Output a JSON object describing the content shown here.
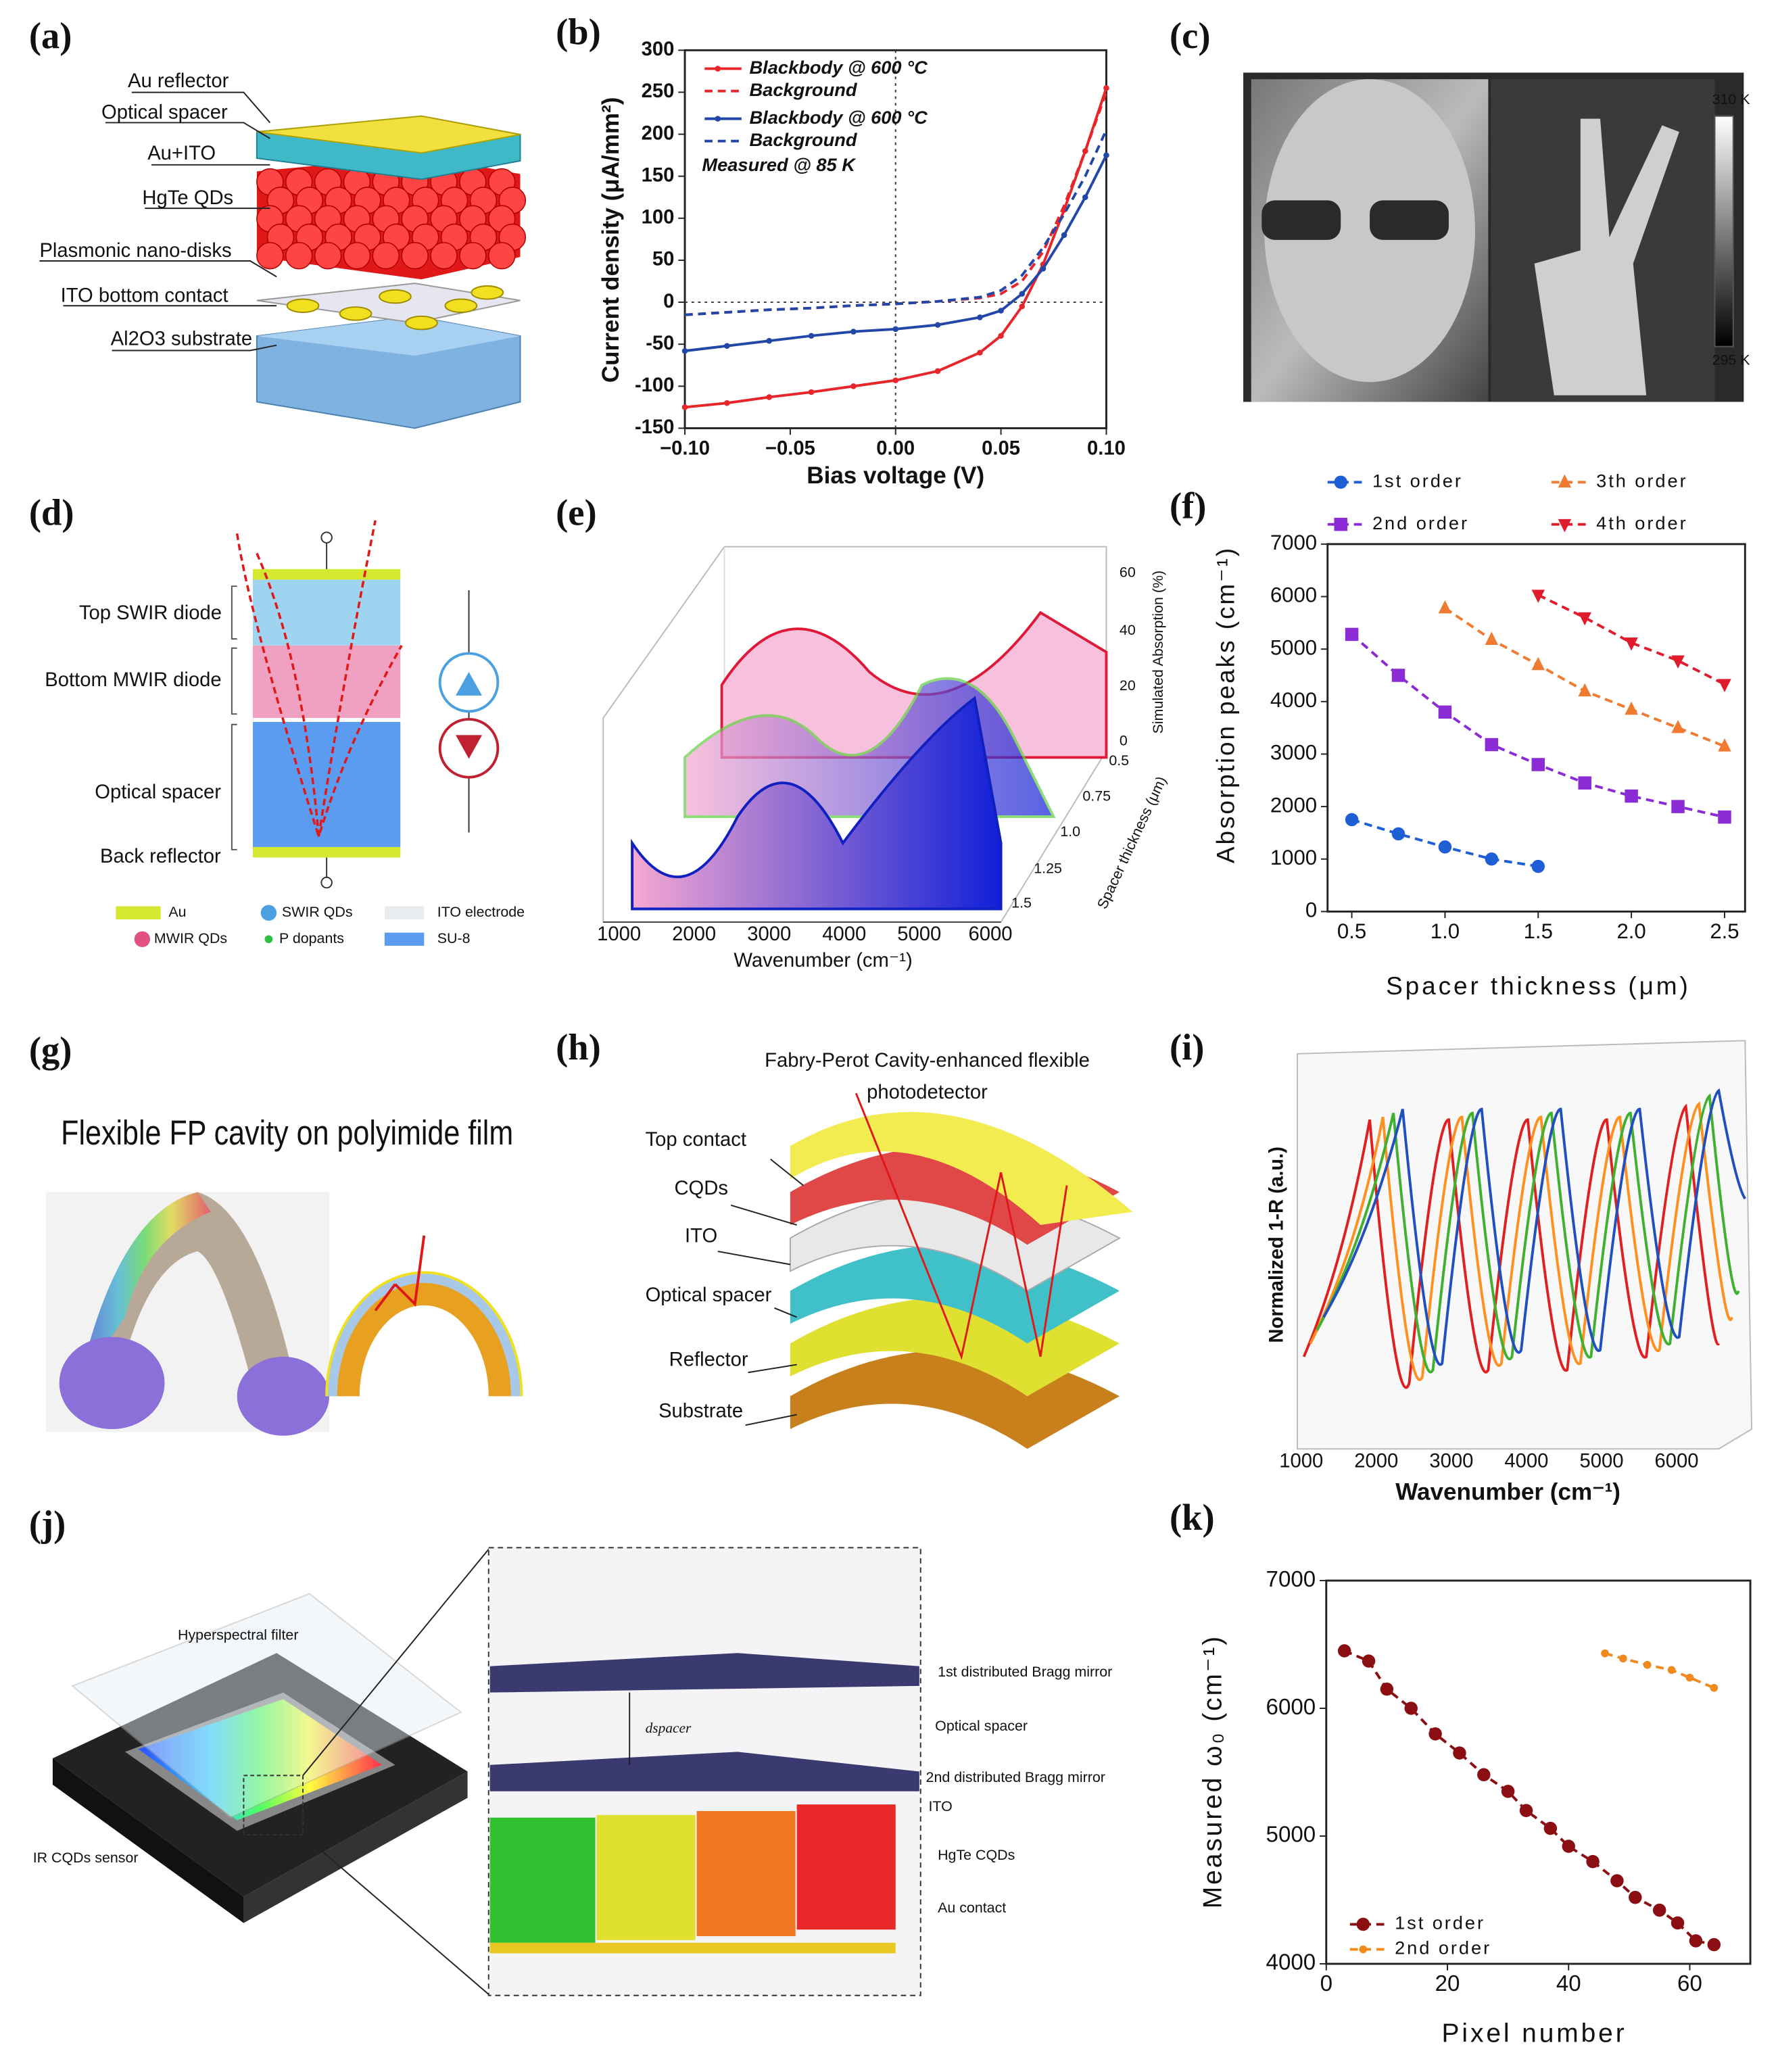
{
  "panels": {
    "a": {
      "label": "(a)",
      "layers": [
        "Au reflector",
        "Optical spacer",
        "Au+ITO",
        "HgTe QDs",
        "Plasmonic nano-disks",
        "ITO bottom contact",
        "Al2O3 substrate"
      ]
    },
    "b": {
      "label": "(b)"
    },
    "c": {
      "label": "(c)",
      "colorbar": [
        "310 K",
        "295 K"
      ]
    },
    "d": {
      "label": "(d)",
      "parts": [
        "Top SWIR diode",
        "Bottom MWIR diode",
        "Optical spacer",
        "Back reflector"
      ],
      "legend": [
        "Au",
        "SWIR QDs",
        "ITO electrode",
        "MWIR QDs",
        "P dopants",
        "SU-8"
      ]
    },
    "e": {
      "label": "(e)",
      "xticks": [
        "1000",
        "2000",
        "3000",
        "4000",
        "5000",
        "6000"
      ],
      "xlabel": "Wavenumber (cm⁻¹)",
      "zticks": [
        "0",
        "20",
        "40",
        "60"
      ],
      "zlabel": "Simulated Absorption (%)",
      "dticks": [
        "0.5",
        "0.75",
        "1.0",
        "1.25",
        "1.5"
      ],
      "dlabel": "Spacer thickness (μm)"
    },
    "f": {
      "label": "(f)"
    },
    "g": {
      "label": "(g)",
      "title": "Flexible FP cavity on polyimide film"
    },
    "h": {
      "label": "(h)",
      "title": [
        "Fabry-Perot Cavity-enhanced flexible",
        "photodetector"
      ],
      "layers": [
        "Top contact",
        "CQDs",
        "ITO",
        "Optical spacer",
        "Reflector",
        "Substrate"
      ]
    },
    "i": {
      "label": "(i)",
      "xticks": [
        "1000",
        "2000",
        "3000",
        "4000",
        "5000",
        "6000"
      ],
      "xlabel": "Wavenumber (cm⁻¹)",
      "ylabel": "Normalized 1-R (a.u.)"
    },
    "j": {
      "label": "(j)",
      "left": [
        "Hyperspectral filter",
        "IR CQDs sensor"
      ],
      "layers": [
        "1st distributed Bragg mirror",
        "Optical spacer",
        "2nd distributed Bragg mirror",
        "ITO",
        "HgTe CQDs",
        "Au contact"
      ],
      "gap": "dspacer"
    },
    "k": {
      "label": "(k)"
    }
  },
  "chart_data": [
    {
      "type": "line",
      "xlabel": "Bias voltage (V)",
      "ylabel": "Current density (μA/mm²)",
      "annotation": "Measured @ 85 K",
      "x": [
        -0.1,
        -0.08,
        -0.06,
        -0.04,
        -0.02,
        0,
        0.02,
        0.04,
        0.05,
        0.06,
        0.07,
        0.08,
        0.09,
        0.1
      ],
      "series": [
        {
          "name": "Blackbody @ 600 °C",
          "color": "#e8262a",
          "style": "solid",
          "marker": "circle",
          "values": [
            -125,
            -120,
            -113,
            -107,
            -100,
            -93,
            -82,
            -60,
            -40,
            -5,
            45,
            110,
            180,
            255
          ]
        },
        {
          "name": "Background",
          "color": "#e8262a",
          "style": "dashed",
          "marker": "none",
          "values": [
            -15,
            -12,
            -9,
            -7,
            -4,
            -2,
            1,
            5,
            10,
            25,
            60,
            115,
            180,
            250
          ]
        },
        {
          "name": "Blackbody @ 600 °C",
          "color": "#2347a8",
          "style": "solid",
          "marker": "circle",
          "values": [
            -58,
            -52,
            -46,
            -40,
            -35,
            -32,
            -27,
            -18,
            -10,
            10,
            40,
            80,
            125,
            175
          ]
        },
        {
          "name": "Background",
          "color": "#2347a8",
          "style": "dashed",
          "marker": "none",
          "values": [
            -15,
            -12,
            -9,
            -7,
            -4,
            -2,
            1,
            6,
            14,
            32,
            65,
            105,
            150,
            205
          ]
        }
      ],
      "xlim": [
        -0.1,
        0.1
      ],
      "xticks": [
        {
          "value": -0.1,
          "label": "−0.10"
        },
        {
          "value": -0.05,
          "label": "−0.05"
        },
        {
          "value": 0,
          "label": "0.00"
        },
        {
          "value": 0.05,
          "label": "0.05"
        },
        {
          "value": 0.1,
          "label": "0.10"
        }
      ],
      "ylim": [
        -150,
        300
      ],
      "yticks": [
        -150,
        -100,
        -50,
        0,
        50,
        100,
        150,
        200,
        250,
        300
      ],
      "zero_lines": true,
      "legend": "upper left"
    },
    {
      "type": "line",
      "xlabel": "Spacer thickness (μm)",
      "ylabel": "Absorption peaks (cm⁻¹)",
      "series": [
        {
          "name": "1st order",
          "color": "#1f5fd6",
          "style": "dashed",
          "marker": "circle",
          "x": [
            0.5,
            0.75,
            1.0,
            1.25,
            1.5
          ],
          "values": [
            1750,
            1480,
            1230,
            1000,
            860
          ]
        },
        {
          "name": "2nd order",
          "color": "#8a2bd6",
          "style": "dashed",
          "marker": "square",
          "x": [
            0.5,
            0.75,
            1.0,
            1.25,
            1.5,
            1.75,
            2.0,
            2.25,
            2.5
          ],
          "values": [
            5280,
            4500,
            3800,
            3180,
            2800,
            2450,
            2200,
            2000,
            1800
          ]
        },
        {
          "name": "3th order",
          "color": "#f07a30",
          "style": "dashed",
          "marker": "triangle-up",
          "x": [
            1.0,
            1.25,
            1.5,
            1.75,
            2.0,
            2.25,
            2.5
          ],
          "values": [
            5780,
            5180,
            4700,
            4200,
            3850,
            3500,
            3150
          ]
        },
        {
          "name": "4th order",
          "color": "#e01c2c",
          "style": "dashed",
          "marker": "triangle-down",
          "x": [
            1.5,
            1.75,
            2.0,
            2.25,
            2.5
          ],
          "values": [
            6030,
            5600,
            5120,
            4780,
            4330
          ]
        }
      ],
      "xlim": [
        0.37,
        2.61
      ],
      "xticks": [
        0.5,
        {
          "value": 1,
          "label": "1.0"
        },
        1.5,
        {
          "value": 2,
          "label": "2.0"
        },
        2.5
      ],
      "ylim": [
        0,
        7000
      ],
      "yticks": [
        0,
        1000,
        2000,
        3000,
        4000,
        5000,
        6000,
        7000
      ],
      "legend": "top"
    },
    {
      "type": "line",
      "xlabel": "Pixel number",
      "ylabel": "Measured ω₀ (cm⁻¹)",
      "series": [
        {
          "name": "1st order",
          "color": "#8b0f12",
          "style": "dashed",
          "marker": "circle",
          "x": [
            3,
            7,
            10,
            14,
            18,
            22,
            26,
            30,
            33,
            37,
            40,
            44,
            48,
            51,
            55,
            58,
            61,
            64
          ],
          "values": [
            6450,
            6370,
            6150,
            6000,
            5800,
            5650,
            5480,
            5350,
            5200,
            5060,
            4920,
            4800,
            4650,
            4520,
            4420,
            4320,
            4180,
            4150
          ]
        },
        {
          "name": "2nd order",
          "color": "#f08a1c",
          "style": "dashed",
          "marker": "circle-small",
          "x": [
            46,
            49,
            53,
            57,
            60,
            64
          ],
          "values": [
            6430,
            6390,
            6340,
            6300,
            6240,
            6160
          ]
        }
      ],
      "xlim": [
        0,
        70
      ],
      "xticks": [
        0,
        20,
        40,
        60
      ],
      "ylim": [
        4000,
        7000
      ],
      "yticks": [
        4000,
        5000,
        6000,
        7000
      ],
      "legend": "lower left"
    }
  ]
}
